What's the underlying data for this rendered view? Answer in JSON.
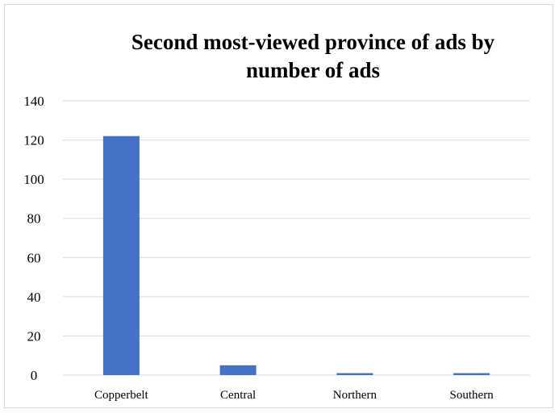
{
  "chart_data": {
    "type": "bar",
    "title_lines": [
      "Second most-viewed province of ads by",
      "number of ads"
    ],
    "categories": [
      "Copperbelt",
      "Central",
      "Northern",
      "Southern"
    ],
    "values": [
      122,
      5,
      1,
      1
    ],
    "ylim": [
      0,
      140
    ],
    "yticks": [
      0,
      20,
      40,
      60,
      80,
      100,
      120,
      140
    ],
    "grid": true,
    "legend": "none",
    "bar_color": "#4472c4",
    "grid_color": "#d9d9d9"
  }
}
